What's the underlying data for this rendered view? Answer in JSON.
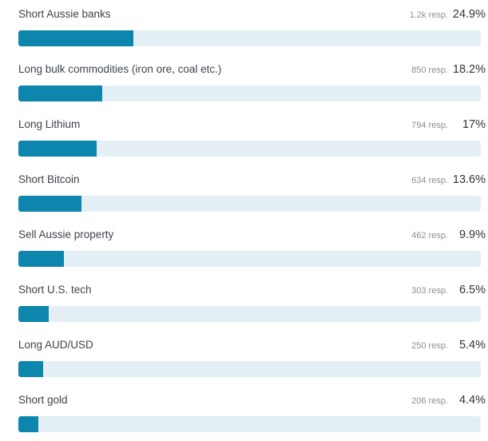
{
  "colors": {
    "bar_fill": "#0d86ad",
    "bar_track": "#e4eff5",
    "label_text": "#3c444c",
    "respondent_text": "#8e8e8e",
    "percent_text": "#333333",
    "background": "#ffffff"
  },
  "chart_data": {
    "type": "bar",
    "orientation": "horizontal",
    "title": "",
    "xlabel": "",
    "ylabel": "",
    "grid": false,
    "legend": false,
    "xlim": [
      0,
      100
    ],
    "categories": [
      "Short Aussie banks",
      "Long bulk commodities (iron ore, coal etc.)",
      "Long Lithium",
      "Short Bitcoin",
      "Sell Aussie property",
      "Short U.S. tech",
      "Long AUD/USD",
      "Short gold"
    ],
    "values": [
      24.9,
      18.2,
      17,
      13.6,
      9.9,
      6.5,
      5.4,
      4.4
    ],
    "respondent_labels": [
      "1.2k resp.",
      "850 resp.",
      "794 resp.",
      "634 resp.",
      "462 resp.",
      "303 resp.",
      "250 resp.",
      "206 resp."
    ],
    "percent_labels": [
      "24.9%",
      "18.2%",
      "17%",
      "13.6%",
      "9.9%",
      "6.5%",
      "5.4%",
      "4.4%"
    ]
  }
}
